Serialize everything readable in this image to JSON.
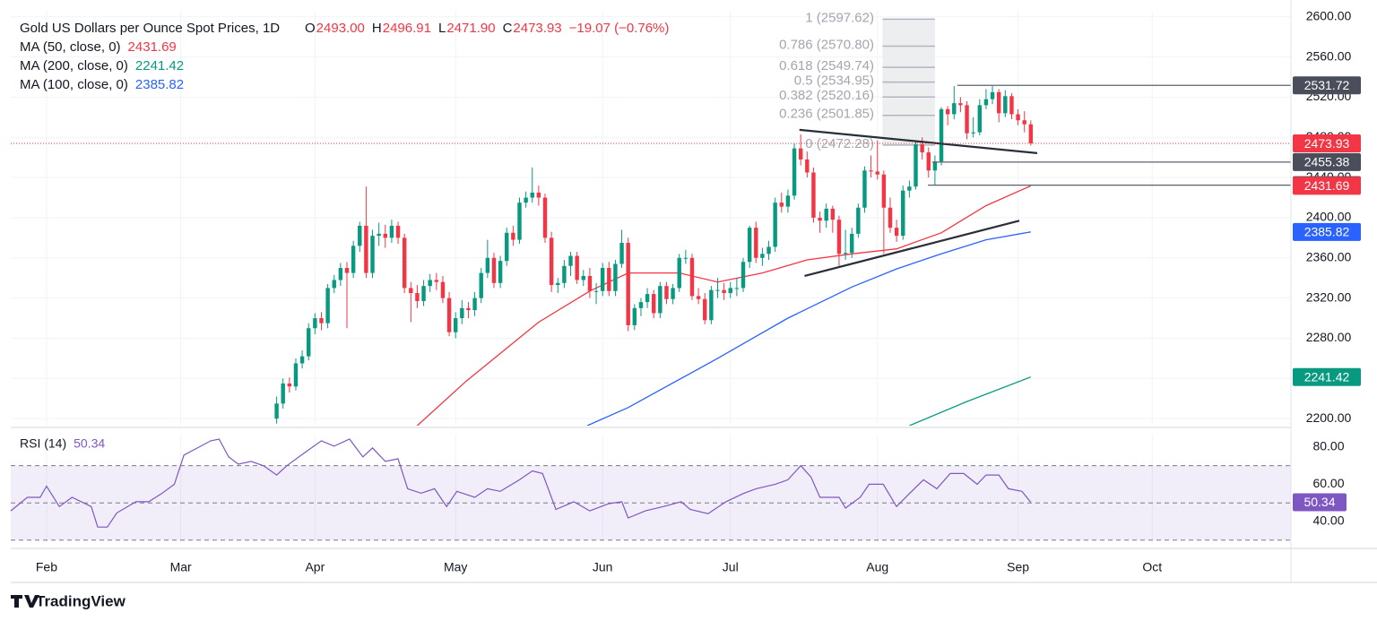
{
  "chart_data": {
    "type": "candlestick",
    "title": "Gold US Dollars per Ounce Spot Prices, 1D",
    "header_ohlc": [
      {
        "label": "O",
        "value": "2493.00"
      },
      {
        "label": "H",
        "value": "2496.91"
      },
      {
        "label": "L",
        "value": "2471.90"
      },
      {
        "label": "C",
        "value": "2473.93"
      }
    ],
    "header_change": "−19.07 (−0.76%)",
    "up_color": "#089981",
    "down_color": "#f23645",
    "candles": [
      [
        36,
        2200,
        2222,
        2195,
        2215
      ],
      [
        37,
        2215,
        2240,
        2210,
        2235
      ],
      [
        38,
        2235,
        2241,
        2226,
        2232
      ],
      [
        39,
        2232,
        2260,
        2228,
        2255
      ],
      [
        40,
        2255,
        2268,
        2250,
        2262
      ],
      [
        41,
        2262,
        2295,
        2258,
        2290
      ],
      [
        42,
        2290,
        2305,
        2284,
        2300
      ],
      [
        43,
        2300,
        2306,
        2288,
        2295
      ],
      [
        44,
        2295,
        2334,
        2290,
        2330
      ],
      [
        45,
        2330,
        2343,
        2325,
        2338
      ],
      [
        46,
        2338,
        2355,
        2332,
        2350
      ],
      [
        47,
        2350,
        2356,
        2290,
        2345
      ],
      [
        48,
        2345,
        2377,
        2340,
        2372
      ],
      [
        49,
        2372,
        2396,
        2366,
        2392
      ],
      [
        50,
        2392,
        2431,
        2340,
        2345
      ],
      [
        51,
        2345,
        2388,
        2340,
        2382
      ],
      [
        52,
        2382,
        2395,
        2372,
        2384
      ],
      [
        53,
        2384,
        2393,
        2370,
        2380
      ],
      [
        54,
        2380,
        2398,
        2375,
        2392
      ],
      [
        55,
        2392,
        2396,
        2374,
        2380
      ],
      [
        56,
        2380,
        2384,
        2325,
        2330
      ],
      [
        57,
        2330,
        2336,
        2296,
        2325
      ],
      [
        58,
        2325,
        2333,
        2310,
        2317
      ],
      [
        59,
        2317,
        2338,
        2312,
        2332
      ],
      [
        60,
        2332,
        2344,
        2326,
        2338
      ],
      [
        61,
        2338,
        2345,
        2328,
        2336
      ],
      [
        62,
        2336,
        2342,
        2315,
        2320
      ],
      [
        63,
        2320,
        2326,
        2282,
        2286
      ],
      [
        64,
        2286,
        2306,
        2280,
        2300
      ],
      [
        65,
        2300,
        2318,
        2294,
        2310
      ],
      [
        66,
        2310,
        2316,
        2300,
        2308
      ],
      [
        67,
        2308,
        2326,
        2302,
        2320
      ],
      [
        68,
        2320,
        2350,
        2315,
        2345
      ],
      [
        69,
        2345,
        2378,
        2340,
        2360
      ],
      [
        70,
        2360,
        2365,
        2330,
        2335
      ],
      [
        71,
        2335,
        2362,
        2330,
        2357
      ],
      [
        72,
        2357,
        2390,
        2352,
        2385
      ],
      [
        73,
        2385,
        2392,
        2372,
        2378
      ],
      [
        74,
        2378,
        2420,
        2374,
        2415
      ],
      [
        75,
        2415,
        2426,
        2410,
        2420
      ],
      [
        76,
        2420,
        2450,
        2415,
        2425
      ],
      [
        77,
        2425,
        2432,
        2412,
        2420
      ],
      [
        78,
        2420,
        2424,
        2375,
        2380
      ],
      [
        79,
        2380,
        2386,
        2326,
        2333
      ],
      [
        80,
        2333,
        2340,
        2325,
        2335
      ],
      [
        81,
        2335,
        2358,
        2330,
        2352
      ],
      [
        82,
        2352,
        2366,
        2342,
        2362
      ],
      [
        83,
        2362,
        2366,
        2334,
        2338
      ],
      [
        84,
        2338,
        2348,
        2332,
        2342
      ],
      [
        85,
        2342,
        2350,
        2320,
        2327
      ],
      [
        86,
        2327,
        2335,
        2314,
        2327
      ],
      [
        87,
        2327,
        2355,
        2322,
        2350
      ],
      [
        88,
        2350,
        2356,
        2322,
        2327
      ],
      [
        89,
        2327,
        2358,
        2322,
        2354
      ],
      [
        90,
        2354,
        2388,
        2350,
        2375
      ],
      [
        91,
        2375,
        2380,
        2287,
        2293
      ],
      [
        92,
        2293,
        2314,
        2288,
        2310
      ],
      [
        93,
        2310,
        2320,
        2302,
        2316
      ],
      [
        94,
        2316,
        2330,
        2310,
        2324
      ],
      [
        95,
        2324,
        2328,
        2300,
        2305
      ],
      [
        96,
        2305,
        2336,
        2300,
        2332
      ],
      [
        97,
        2332,
        2336,
        2314,
        2319
      ],
      [
        98,
        2319,
        2334,
        2314,
        2330
      ],
      [
        99,
        2330,
        2364,
        2326,
        2360
      ],
      [
        100,
        2360,
        2368,
        2354,
        2360
      ],
      [
        101,
        2360,
        2364,
        2318,
        2322
      ],
      [
        102,
        2322,
        2330,
        2314,
        2319
      ],
      [
        103,
        2319,
        2325,
        2294,
        2298
      ],
      [
        104,
        2298,
        2332,
        2294,
        2328
      ],
      [
        105,
        2328,
        2340,
        2320,
        2328
      ],
      [
        106,
        2328,
        2335,
        2318,
        2325
      ],
      [
        107,
        2325,
        2336,
        2320,
        2330
      ],
      [
        108,
        2330,
        2340,
        2322,
        2330
      ],
      [
        109,
        2330,
        2360,
        2326,
        2356
      ],
      [
        110,
        2356,
        2392,
        2350,
        2390
      ],
      [
        111,
        2390,
        2396,
        2355,
        2360
      ],
      [
        112,
        2360,
        2370,
        2352,
        2364
      ],
      [
        113,
        2364,
        2377,
        2358,
        2371
      ],
      [
        114,
        2371,
        2420,
        2366,
        2415
      ],
      [
        115,
        2415,
        2425,
        2405,
        2411
      ],
      [
        116,
        2411,
        2428,
        2405,
        2422
      ],
      [
        117,
        2422,
        2474,
        2418,
        2469
      ],
      [
        118,
        2469,
        2483,
        2452,
        2458
      ],
      [
        119,
        2458,
        2466,
        2440,
        2445
      ],
      [
        120,
        2445,
        2450,
        2395,
        2400
      ],
      [
        121,
        2400,
        2406,
        2385,
        2397
      ],
      [
        122,
        2397,
        2414,
        2390,
        2409
      ],
      [
        123,
        2409,
        2412,
        2385,
        2398
      ],
      [
        124,
        2398,
        2402,
        2352,
        2364
      ],
      [
        125,
        2364,
        2388,
        2358,
        2365
      ],
      [
        126,
        2365,
        2390,
        2360,
        2384
      ],
      [
        127,
        2384,
        2414,
        2380,
        2410
      ],
      [
        128,
        2410,
        2451,
        2405,
        2447
      ],
      [
        129,
        2447,
        2462,
        2440,
        2446
      ],
      [
        130,
        2446,
        2477,
        2438,
        2443
      ],
      [
        131,
        2443,
        2447,
        2364,
        2410
      ],
      [
        132,
        2410,
        2420,
        2385,
        2390
      ],
      [
        133,
        2390,
        2398,
        2376,
        2382
      ],
      [
        134,
        2382,
        2432,
        2378,
        2427
      ],
      [
        135,
        2427,
        2437,
        2420,
        2431
      ],
      [
        136,
        2431,
        2477,
        2428,
        2473
      ],
      [
        137,
        2473,
        2480,
        2458,
        2465
      ],
      [
        138,
        2465,
        2470,
        2440,
        2447
      ],
      [
        139,
        2447,
        2462,
        2432,
        2456
      ],
      [
        140,
        2456,
        2510,
        2452,
        2508
      ],
      [
        141,
        2508,
        2511,
        2492,
        2503
      ],
      [
        142,
        2503,
        2531,
        2498,
        2514
      ],
      [
        143,
        2514,
        2520,
        2505,
        2512
      ],
      [
        144,
        2512,
        2516,
        2478,
        2484
      ],
      [
        145,
        2484,
        2500,
        2480,
        2485
      ],
      [
        146,
        2485,
        2518,
        2482,
        2512
      ],
      [
        147,
        2512,
        2528,
        2508,
        2518
      ],
      [
        148,
        2518,
        2531,
        2513,
        2525
      ],
      [
        149,
        2525,
        2528,
        2495,
        2504
      ],
      [
        150,
        2504,
        2527,
        2500,
        2521
      ],
      [
        151,
        2521,
        2524,
        2498,
        2503
      ],
      [
        152,
        2503,
        2508,
        2492,
        2497
      ],
      [
        153,
        2497,
        2506,
        2485,
        2493
      ],
      [
        154,
        2493,
        2496.91,
        2471.9,
        2473.93
      ]
    ],
    "xlim": [
      -5.6,
      194.7
    ],
    "xticks": [
      {
        "value": 0,
        "label": "Feb"
      },
      {
        "value": 21,
        "label": "Mar"
      },
      {
        "value": 42,
        "label": "Apr"
      },
      {
        "value": 64,
        "label": "May"
      },
      {
        "value": 87,
        "label": "Jun"
      },
      {
        "value": 107,
        "label": "Jul"
      },
      {
        "value": 130,
        "label": "Aug"
      },
      {
        "value": 152,
        "label": "Sep"
      },
      {
        "value": 173,
        "label": "Oct"
      }
    ],
    "ylim": [
      2193,
      2606
    ],
    "yticks": [
      {
        "value": 2200,
        "label": "2200.00"
      },
      {
        "value": 2240,
        "label": "2240.00"
      },
      {
        "value": 2280,
        "label": "2280.00"
      },
      {
        "value": 2320,
        "label": "2320.00"
      },
      {
        "value": 2360,
        "label": "2360.00"
      },
      {
        "value": 2400,
        "label": "2400.00"
      },
      {
        "value": 2440,
        "label": "2440.00"
      },
      {
        "value": 2480,
        "label": "2480.00"
      },
      {
        "value": 2520,
        "label": "2520.00"
      },
      {
        "value": 2560,
        "label": "2560.00"
      },
      {
        "value": 2600,
        "label": "2600.00"
      }
    ],
    "grid": true,
    "moving_averages": [
      {
        "name": "MA (50, close, 0)",
        "color": "#f23645",
        "points": [
          [
            58,
            2193
          ],
          [
            65.6,
            2237
          ],
          [
            77,
            2296
          ],
          [
            85,
            2327
          ],
          [
            91,
            2345
          ],
          [
            99,
            2345
          ],
          [
            105,
            2336
          ],
          [
            112,
            2345
          ],
          [
            119,
            2358
          ],
          [
            126,
            2364
          ],
          [
            133,
            2369
          ],
          [
            140,
            2385
          ],
          [
            147,
            2412
          ],
          [
            154,
            2431.69
          ]
        ]
      },
      {
        "name": "MA (200, close, 0)",
        "color": "#089981",
        "points": [
          [
            135,
            2193
          ],
          [
            144,
            2217
          ],
          [
            154,
            2241.42
          ]
        ]
      },
      {
        "name": "MA (100, close, 0)",
        "color": "#2962ff",
        "points": [
          [
            84.6,
            2193
          ],
          [
            91,
            2211
          ],
          [
            105,
            2260
          ],
          [
            116,
            2300
          ],
          [
            126,
            2331
          ],
          [
            133,
            2349
          ],
          [
            140,
            2364
          ],
          [
            147,
            2378
          ],
          [
            154,
            2385.82
          ]
        ]
      }
    ],
    "trendlines": [
      [
        [
          117.8,
          2487.5
        ],
        [
          155,
          2464.3
        ]
      ],
      [
        [
          118.6,
          2342
        ],
        [
          152.2,
          2397
        ]
      ]
    ],
    "levels": [
      {
        "value": 2531.72,
        "from": 142.5
      },
      {
        "value": 2455.38,
        "from": 138.6
      },
      {
        "value": 2432.41,
        "from": 137.9
      }
    ],
    "fib": {
      "x_range": [
        130.8,
        139
      ],
      "levels": [
        {
          "value": 2597.62,
          "label": "1 (2597.62)"
        },
        {
          "value": 2570.8,
          "label": "0.786 (2570.80)"
        },
        {
          "value": 2549.74,
          "label": "0.618 (2549.74)"
        },
        {
          "value": 2534.95,
          "label": "0.5 (2534.95)"
        },
        {
          "value": 2520.16,
          "label": "0.382 (2520.16)"
        },
        {
          "value": 2501.85,
          "label": "0.236 (2501.85)"
        },
        {
          "value": 2472.28,
          "label": "0 (2472.28)"
        }
      ]
    },
    "rsi": {
      "name": "RSI (14)",
      "color": "#7e57c2",
      "ylim": [
        28.9,
        86.7
      ],
      "yticks": [
        {
          "value": 40,
          "label": "40.00"
        },
        {
          "value": 60,
          "label": "60.00"
        },
        {
          "value": 80,
          "label": "80.00"
        }
      ],
      "bands": [
        70,
        50,
        30
      ],
      "points": [
        [
          -5.6,
          45.7
        ],
        [
          -3,
          53
        ],
        [
          -1,
          53
        ],
        [
          0,
          59
        ],
        [
          2,
          48
        ],
        [
          4,
          53
        ],
        [
          7,
          48
        ],
        [
          8,
          37
        ],
        [
          9.5,
          37
        ],
        [
          11,
          44.6
        ],
        [
          14,
          50.6
        ],
        [
          16,
          50.6
        ],
        [
          18,
          55
        ],
        [
          20,
          60
        ],
        [
          21.5,
          75.7
        ],
        [
          23.6,
          79.5
        ],
        [
          25.7,
          83.4
        ],
        [
          27,
          84.3
        ],
        [
          28.5,
          74.7
        ],
        [
          30,
          70.8
        ],
        [
          32,
          72.3
        ],
        [
          34,
          69.9
        ],
        [
          36,
          65
        ],
        [
          37.6,
          70
        ],
        [
          40.4,
          77
        ],
        [
          43,
          83.4
        ],
        [
          45,
          80.5
        ],
        [
          47.4,
          84.3
        ],
        [
          49.5,
          74.7
        ],
        [
          51,
          79.5
        ],
        [
          53,
          72.3
        ],
        [
          55,
          73.7
        ],
        [
          56.5,
          57.6
        ],
        [
          58.6,
          55.2
        ],
        [
          60.7,
          57.6
        ],
        [
          62.6,
          48
        ],
        [
          64.2,
          56.2
        ],
        [
          67,
          53
        ],
        [
          69,
          57.6
        ],
        [
          71,
          56.2
        ],
        [
          74,
          62.4
        ],
        [
          76,
          67.2
        ],
        [
          77.6,
          65.8
        ],
        [
          79.7,
          46.5
        ],
        [
          82.5,
          50.6
        ],
        [
          85,
          45.7
        ],
        [
          88,
          49.6
        ],
        [
          90,
          50.6
        ],
        [
          91,
          41.9
        ],
        [
          93.7,
          45.7
        ],
        [
          96.5,
          48
        ],
        [
          99.3,
          50.6
        ],
        [
          100.7,
          46.5
        ],
        [
          103.5,
          44.2
        ],
        [
          106.3,
          50.6
        ],
        [
          109,
          55
        ],
        [
          111,
          57.6
        ],
        [
          114,
          60
        ],
        [
          116,
          62.4
        ],
        [
          118,
          70
        ],
        [
          119.6,
          63.9
        ],
        [
          121,
          53
        ],
        [
          124,
          53
        ],
        [
          125,
          47.2
        ],
        [
          127.3,
          53
        ],
        [
          128.7,
          60
        ],
        [
          130.9,
          60
        ],
        [
          133,
          48
        ],
        [
          135,
          55
        ],
        [
          137.2,
          62.4
        ],
        [
          139.3,
          57.6
        ],
        [
          141.4,
          65.8
        ],
        [
          143.5,
          65.8
        ],
        [
          145.6,
          60
        ],
        [
          147,
          65
        ],
        [
          149,
          65
        ],
        [
          150.5,
          57.6
        ],
        [
          152.6,
          56.2
        ],
        [
          154,
          50.34
        ]
      ]
    },
    "brand": "TradingView"
  }
}
